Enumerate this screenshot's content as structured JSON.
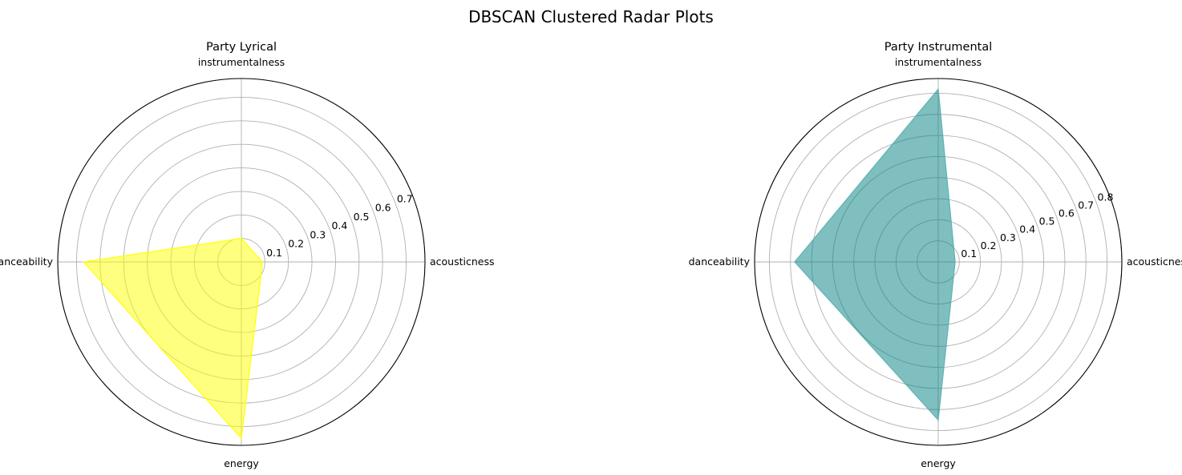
{
  "figure": {
    "suptitle": "DBSCAN Clustered Radar Plots"
  },
  "chart_data": [
    {
      "type": "radar",
      "title": "Party Lyrical",
      "axes": [
        "acousticness",
        "instrumentalness",
        "danceability",
        "energy"
      ],
      "values": [
        0.09,
        0.1,
        0.67,
        0.75
      ],
      "rlim": [
        0,
        0.78
      ],
      "rticks": [
        0.1,
        0.2,
        0.3,
        0.4,
        0.5,
        0.6,
        0.7
      ],
      "rtick_labels": [
        "0.1",
        "0.2",
        "0.3",
        "0.4",
        "0.5",
        "0.6",
        "0.7"
      ],
      "fill_color": "#ffff00",
      "fill_opacity": 0.5,
      "edge_color": "#ffff00",
      "grid": true
    },
    {
      "type": "radar",
      "title": "Party Instrumental",
      "axes": [
        "acousticness",
        "instrumentalness",
        "danceability",
        "energy"
      ],
      "values": [
        0.08,
        0.82,
        0.68,
        0.75
      ],
      "rlim": [
        0,
        0.87
      ],
      "rticks": [
        0.1,
        0.2,
        0.3,
        0.4,
        0.5,
        0.6,
        0.7,
        0.8
      ],
      "rtick_labels": [
        "0.1",
        "0.2",
        "0.3",
        "0.4",
        "0.5",
        "0.6",
        "0.7",
        "0.8"
      ],
      "fill_color": "#008080",
      "fill_opacity": 0.5,
      "edge_color": "#5fb3b3",
      "grid": true
    }
  ]
}
